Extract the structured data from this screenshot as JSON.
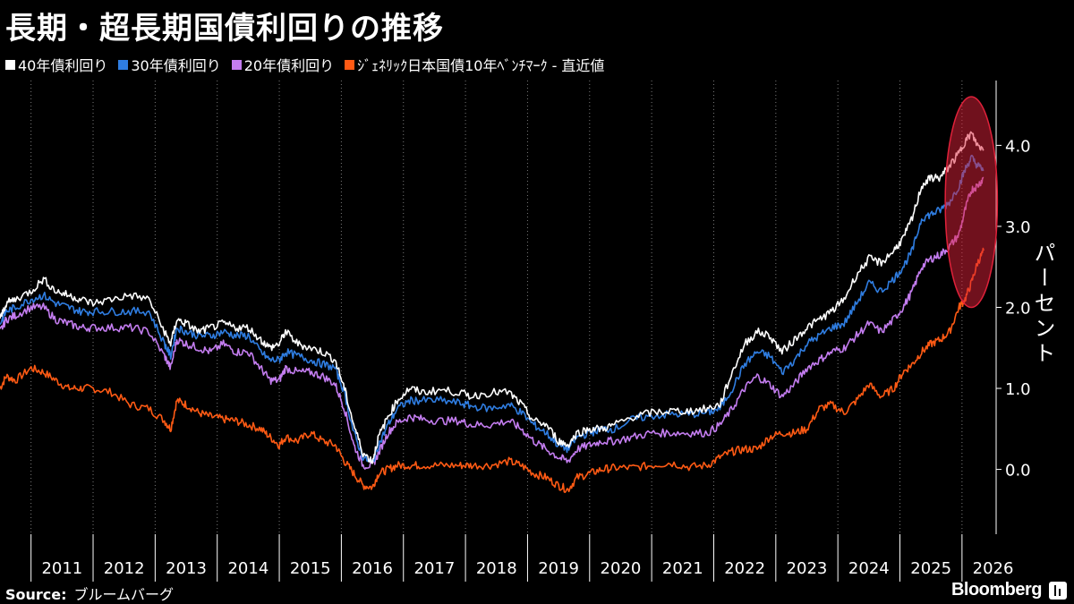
{
  "title": "長期・超長期国債利回りの推移",
  "legend": [
    {
      "label": "40年債利回り",
      "color": "#ffffff"
    },
    {
      "label": "30年債利回り",
      "color": "#2f7de1"
    },
    {
      "label": "20年債利回り",
      "color": "#c47df0"
    },
    {
      "label": "ｼﾞｪﾈﾘｯｸ日本国債10年ﾍﾞﾝﾁﾏｰｸ - 直近値",
      "color": "#ff5a14"
    }
  ],
  "source_label": "Source:",
  "source_text": "ブルームバーグ",
  "brand": "Bloomberg",
  "chart_data": {
    "type": "line",
    "ylabel": "パーセント",
    "ylim": [
      -0.8,
      4.8
    ],
    "xlim": [
      2010.5,
      2026.55
    ],
    "yticks": [
      0.0,
      1.0,
      2.0,
      3.0,
      4.0
    ],
    "ytick_labels": [
      "0.0",
      "1.0",
      "2.0",
      "3.0",
      "4.0"
    ],
    "xticks": [
      2011,
      2012,
      2013,
      2014,
      2015,
      2016,
      2017,
      2018,
      2019,
      2020,
      2021,
      2022,
      2023,
      2024,
      2025,
      2026
    ],
    "xtick_labels": [
      "2011",
      "2012",
      "2013",
      "2014",
      "2015",
      "2016",
      "2017",
      "2018",
      "2019",
      "2020",
      "2021",
      "2022",
      "2023",
      "2024",
      "2025",
      "2026"
    ],
    "grid": "vertical dotted",
    "legend_position": "top-left",
    "highlight": {
      "type": "ellipse",
      "x_center": 2026.15,
      "y_center": 3.3,
      "x_radius": 0.42,
      "y_radius": 1.3,
      "color": "#e0213a"
    },
    "series": [
      {
        "name": "40年債利回り",
        "color": "#ffffff",
        "x": [
          2010.5,
          2010.6,
          2010.75,
          2011.0,
          2011.2,
          2011.4,
          2011.6,
          2011.8,
          2012.0,
          2012.3,
          2012.6,
          2012.9,
          2013.15,
          2013.25,
          2013.35,
          2013.5,
          2013.7,
          2013.9,
          2014.1,
          2014.3,
          2014.5,
          2014.7,
          2014.85,
          2015.0,
          2015.1,
          2015.3,
          2015.5,
          2015.7,
          2015.9,
          2016.05,
          2016.2,
          2016.35,
          2016.5,
          2016.6,
          2016.75,
          2016.9,
          2017.1,
          2017.3,
          2017.6,
          2017.9,
          2018.1,
          2018.4,
          2018.7,
          2018.9,
          2019.1,
          2019.3,
          2019.5,
          2019.65,
          2019.8,
          2020.0,
          2020.2,
          2020.4,
          2020.7,
          2021.0,
          2021.3,
          2021.6,
          2021.9,
          2022.1,
          2022.3,
          2022.5,
          2022.7,
          2022.9,
          2023.1,
          2023.3,
          2023.5,
          2023.7,
          2023.9,
          2024.1,
          2024.3,
          2024.5,
          2024.7,
          2024.9,
          2025.05,
          2025.2,
          2025.35,
          2025.5,
          2025.65,
          2025.8,
          2025.95,
          2026.05,
          2026.15,
          2026.25,
          2026.35
        ],
        "y": [
          1.85,
          2.05,
          2.1,
          2.2,
          2.35,
          2.2,
          2.15,
          2.1,
          2.05,
          2.1,
          2.15,
          2.1,
          1.7,
          1.55,
          1.85,
          1.8,
          1.7,
          1.75,
          1.8,
          1.75,
          1.75,
          1.6,
          1.5,
          1.55,
          1.7,
          1.55,
          1.5,
          1.45,
          1.35,
          1.0,
          0.55,
          0.2,
          0.1,
          0.4,
          0.65,
          0.85,
          1.0,
          0.95,
          0.98,
          0.95,
          0.9,
          0.95,
          0.95,
          0.8,
          0.6,
          0.55,
          0.35,
          0.3,
          0.45,
          0.5,
          0.5,
          0.55,
          0.65,
          0.7,
          0.72,
          0.72,
          0.75,
          0.8,
          1.2,
          1.55,
          1.7,
          1.65,
          1.45,
          1.6,
          1.75,
          1.85,
          1.95,
          2.1,
          2.4,
          2.6,
          2.55,
          2.7,
          2.85,
          3.1,
          3.5,
          3.6,
          3.6,
          3.75,
          3.9,
          4.05,
          4.15,
          4.0,
          3.95
        ]
      },
      {
        "name": "30年債利回り",
        "color": "#2f7de1",
        "x": [
          2010.5,
          2010.6,
          2010.75,
          2011.0,
          2011.2,
          2011.4,
          2011.6,
          2011.8,
          2012.0,
          2012.3,
          2012.6,
          2012.9,
          2013.15,
          2013.25,
          2013.35,
          2013.5,
          2013.7,
          2013.9,
          2014.1,
          2014.3,
          2014.5,
          2014.7,
          2014.85,
          2015.0,
          2015.1,
          2015.3,
          2015.5,
          2015.7,
          2015.9,
          2016.05,
          2016.2,
          2016.35,
          2016.5,
          2016.6,
          2016.75,
          2016.9,
          2017.1,
          2017.3,
          2017.6,
          2017.9,
          2018.1,
          2018.4,
          2018.7,
          2018.9,
          2019.1,
          2019.3,
          2019.5,
          2019.65,
          2019.8,
          2020.0,
          2020.2,
          2020.4,
          2020.7,
          2021.0,
          2021.3,
          2021.6,
          2021.9,
          2022.1,
          2022.3,
          2022.5,
          2022.7,
          2022.9,
          2023.1,
          2023.3,
          2023.5,
          2023.7,
          2023.9,
          2024.1,
          2024.3,
          2024.5,
          2024.7,
          2024.9,
          2025.05,
          2025.2,
          2025.35,
          2025.5,
          2025.65,
          2025.8,
          2025.95,
          2026.05,
          2026.15,
          2026.25,
          2026.35
        ],
        "y": [
          1.8,
          1.95,
          2.0,
          2.1,
          2.15,
          2.05,
          2.0,
          1.95,
          1.95,
          1.95,
          1.95,
          1.95,
          1.55,
          1.4,
          1.75,
          1.7,
          1.65,
          1.65,
          1.7,
          1.65,
          1.65,
          1.45,
          1.35,
          1.35,
          1.45,
          1.4,
          1.35,
          1.3,
          1.25,
          0.95,
          0.45,
          0.15,
          0.08,
          0.3,
          0.55,
          0.75,
          0.85,
          0.85,
          0.85,
          0.82,
          0.78,
          0.75,
          0.8,
          0.7,
          0.55,
          0.45,
          0.3,
          0.25,
          0.4,
          0.45,
          0.5,
          0.5,
          0.62,
          0.66,
          0.68,
          0.68,
          0.7,
          0.75,
          1.0,
          1.3,
          1.45,
          1.4,
          1.2,
          1.35,
          1.55,
          1.65,
          1.75,
          1.8,
          2.05,
          2.3,
          2.2,
          2.35,
          2.5,
          2.7,
          3.1,
          3.15,
          3.2,
          3.3,
          3.5,
          3.7,
          3.85,
          3.75,
          3.7
        ]
      },
      {
        "name": "20年債利回り",
        "color": "#c47df0",
        "x": [
          2010.5,
          2010.6,
          2010.75,
          2011.0,
          2011.2,
          2011.4,
          2011.6,
          2011.8,
          2012.0,
          2012.3,
          2012.6,
          2012.9,
          2013.15,
          2013.25,
          2013.35,
          2013.5,
          2013.7,
          2013.9,
          2014.1,
          2014.3,
          2014.5,
          2014.7,
          2014.85,
          2015.0,
          2015.1,
          2015.3,
          2015.5,
          2015.7,
          2015.9,
          2016.05,
          2016.2,
          2016.35,
          2016.5,
          2016.6,
          2016.75,
          2016.9,
          2017.1,
          2017.3,
          2017.6,
          2017.9,
          2018.1,
          2018.4,
          2018.7,
          2018.9,
          2019.1,
          2019.3,
          2019.5,
          2019.65,
          2019.8,
          2020.0,
          2020.2,
          2020.4,
          2020.7,
          2021.0,
          2021.3,
          2021.6,
          2021.9,
          2022.1,
          2022.3,
          2022.5,
          2022.7,
          2022.9,
          2023.1,
          2023.3,
          2023.5,
          2023.7,
          2023.9,
          2024.1,
          2024.3,
          2024.5,
          2024.7,
          2024.9,
          2025.05,
          2025.2,
          2025.35,
          2025.5,
          2025.65,
          2025.8,
          2025.95,
          2026.05,
          2026.15,
          2026.25,
          2026.35
        ],
        "y": [
          1.7,
          1.85,
          1.9,
          2.0,
          2.0,
          1.85,
          1.8,
          1.75,
          1.75,
          1.75,
          1.75,
          1.7,
          1.4,
          1.25,
          1.6,
          1.55,
          1.5,
          1.45,
          1.55,
          1.45,
          1.45,
          1.25,
          1.1,
          1.1,
          1.25,
          1.2,
          1.2,
          1.15,
          1.05,
          0.75,
          0.3,
          0.05,
          0.05,
          0.2,
          0.45,
          0.58,
          0.65,
          0.62,
          0.6,
          0.6,
          0.55,
          0.55,
          0.6,
          0.5,
          0.35,
          0.25,
          0.15,
          0.1,
          0.25,
          0.3,
          0.35,
          0.35,
          0.4,
          0.45,
          0.45,
          0.45,
          0.45,
          0.55,
          0.75,
          1.0,
          1.15,
          1.05,
          0.9,
          1.05,
          1.25,
          1.35,
          1.45,
          1.5,
          1.65,
          1.8,
          1.7,
          1.85,
          2.0,
          2.2,
          2.5,
          2.6,
          2.65,
          2.75,
          2.9,
          3.2,
          3.45,
          3.5,
          3.6
        ]
      },
      {
        "name": "ｼﾞｪﾈﾘｯｸ日本国債10年ﾍﾞﾝﾁﾏｰｸ - 直近値",
        "color": "#ff5a14",
        "x": [
          2010.5,
          2010.6,
          2010.75,
          2011.0,
          2011.2,
          2011.4,
          2011.6,
          2011.8,
          2012.0,
          2012.3,
          2012.6,
          2012.9,
          2013.15,
          2013.25,
          2013.35,
          2013.5,
          2013.7,
          2013.9,
          2014.1,
          2014.3,
          2014.5,
          2014.7,
          2014.85,
          2015.0,
          2015.1,
          2015.3,
          2015.5,
          2015.7,
          2015.9,
          2016.05,
          2016.2,
          2016.35,
          2016.5,
          2016.6,
          2016.75,
          2016.9,
          2017.1,
          2017.3,
          2017.6,
          2017.9,
          2018.1,
          2018.4,
          2018.7,
          2018.9,
          2019.1,
          2019.3,
          2019.5,
          2019.65,
          2019.8,
          2020.0,
          2020.2,
          2020.4,
          2020.7,
          2021.0,
          2021.3,
          2021.6,
          2021.9,
          2022.1,
          2022.3,
          2022.5,
          2022.7,
          2022.9,
          2023.1,
          2023.3,
          2023.5,
          2023.7,
          2023.9,
          2024.1,
          2024.3,
          2024.5,
          2024.7,
          2024.9,
          2025.05,
          2025.2,
          2025.35,
          2025.5,
          2025.65,
          2025.8,
          2025.95,
          2026.05,
          2026.15,
          2026.25,
          2026.35
        ],
        "y": [
          1.0,
          1.15,
          1.1,
          1.25,
          1.2,
          1.1,
          1.0,
          1.0,
          1.0,
          0.95,
          0.8,
          0.75,
          0.6,
          0.5,
          0.85,
          0.8,
          0.7,
          0.65,
          0.62,
          0.6,
          0.55,
          0.5,
          0.4,
          0.3,
          0.4,
          0.35,
          0.45,
          0.35,
          0.3,
          0.1,
          -0.05,
          -0.2,
          -0.22,
          -0.05,
          0.0,
          0.05,
          0.05,
          0.05,
          0.05,
          0.05,
          0.05,
          0.05,
          0.1,
          0.05,
          -0.05,
          -0.1,
          -0.2,
          -0.25,
          -0.1,
          -0.05,
          0.0,
          0.02,
          0.02,
          0.05,
          0.08,
          0.03,
          0.05,
          0.15,
          0.22,
          0.25,
          0.25,
          0.4,
          0.45,
          0.45,
          0.5,
          0.75,
          0.8,
          0.7,
          0.85,
          1.05,
          0.9,
          1.0,
          1.2,
          1.3,
          1.45,
          1.55,
          1.6,
          1.7,
          2.0,
          2.1,
          2.3,
          2.55,
          2.7
        ]
      }
    ]
  }
}
